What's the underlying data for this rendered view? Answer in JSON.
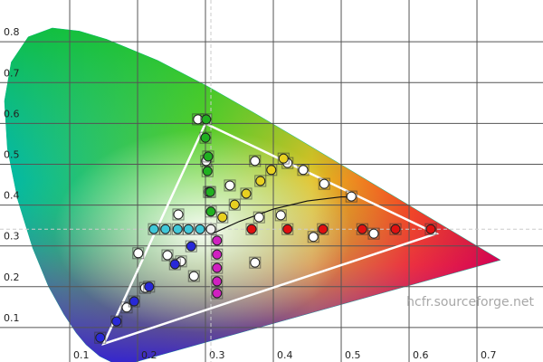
{
  "chart_data": {
    "type": "scatter",
    "watermark": "hcfr.sourceforge.net",
    "xlim": [
      -0.0027,
      0.7973
    ],
    "ylim": [
      0.0155,
      0.9024
    ],
    "xticks": [
      0.1,
      0.2,
      0.3,
      0.4,
      0.5,
      0.6,
      0.7
    ],
    "yticks": [
      0.1,
      0.2,
      0.3,
      0.4,
      0.5,
      0.6,
      0.7,
      0.8
    ],
    "grid": true,
    "crosshair": [
      0.308,
      0.341
    ],
    "series": [
      {
        "marker": "area",
        "color": "#00b890",
        "x": [
          0.1741,
          0.144,
          0.1241,
          0.1096,
          0.0913,
          0.0687,
          0.0454,
          0.0235,
          0.0082,
          0.0039,
          0.0139,
          0.0389,
          0.0743,
          0.1142,
          0.1547,
          0.2296,
          0.3016,
          0.3731,
          0.4441,
          0.5125,
          0.5752,
          0.627,
          0.6915,
          0.7347
        ],
        "values": [
          0.005,
          0.0297,
          0.0578,
          0.0868,
          0.1327,
          0.2007,
          0.295,
          0.4127,
          0.5384,
          0.6548,
          0.7502,
          0.812,
          0.8338,
          0.8262,
          0.8059,
          0.7543,
          0.6923,
          0.6245,
          0.5547,
          0.4866,
          0.4242,
          0.3725,
          0.3083,
          0.2653
        ]
      },
      {
        "marker": "polygon",
        "color": "#ffffff",
        "x": [
          0.64,
          0.3,
          0.15
        ],
        "values": [
          0.33,
          0.6,
          0.06
        ]
      },
      {
        "marker": "line",
        "color": "#111111",
        "x": [
          0.31,
          0.35,
          0.4,
          0.45,
          0.5,
          0.52
        ],
        "values": [
          0.33,
          0.36,
          0.39,
          0.41,
          0.42,
          0.42
        ]
      },
      {
        "marker": "point",
        "color": "#ffffff",
        "x": [
          0.289,
          0.301,
          0.305,
          0.373,
          0.421,
          0.444,
          0.475,
          0.515,
          0.26,
          0.201,
          0.244,
          0.264,
          0.283,
          0.211,
          0.184,
          0.373,
          0.336,
          0.379,
          0.411,
          0.459,
          0.548
        ],
        "values": [
          0.61,
          0.508,
          0.432,
          0.508,
          0.503,
          0.486,
          0.452,
          0.421,
          0.377,
          0.282,
          0.277,
          0.262,
          0.226,
          0.197,
          0.149,
          0.259,
          0.448,
          0.37,
          0.375,
          0.322,
          0.33
        ]
      },
      {
        "marker": "point",
        "color": "#e01010",
        "x": [
          0.368,
          0.421,
          0.473,
          0.531,
          0.58,
          0.632
        ],
        "values": [
          0.341,
          0.341,
          0.341,
          0.341,
          0.341,
          0.341
        ]
      },
      {
        "marker": "point",
        "color": "#20b020",
        "x": [
          0.301,
          0.3,
          0.304,
          0.303,
          0.307,
          0.308
        ],
        "values": [
          0.61,
          0.565,
          0.519,
          0.483,
          0.432,
          0.384
        ]
      },
      {
        "marker": "point",
        "color": "#2828d8",
        "x": [
          0.145,
          0.169,
          0.195,
          0.217,
          0.255,
          0.279
        ],
        "values": [
          0.075,
          0.115,
          0.164,
          0.2,
          0.255,
          0.299
        ]
      },
      {
        "marker": "point",
        "color": "#40c8d8",
        "x": [
          0.224,
          0.241,
          0.259,
          0.275,
          0.292
        ],
        "values": [
          0.341,
          0.341,
          0.341,
          0.341,
          0.341
        ]
      },
      {
        "marker": "point",
        "color": "#d020c0",
        "x": [
          0.317,
          0.317,
          0.317,
          0.317,
          0.317
        ],
        "values": [
          0.313,
          0.279,
          0.246,
          0.213,
          0.184
        ]
      },
      {
        "marker": "point",
        "color": "#e8d020",
        "x": [
          0.325,
          0.343,
          0.36,
          0.381,
          0.397,
          0.415
        ],
        "values": [
          0.37,
          0.401,
          0.428,
          0.459,
          0.486,
          0.514
        ]
      },
      {
        "marker": "point",
        "color": "#f0f0f0",
        "x": [
          0.308
        ],
        "values": [
          0.341
        ]
      }
    ]
  }
}
